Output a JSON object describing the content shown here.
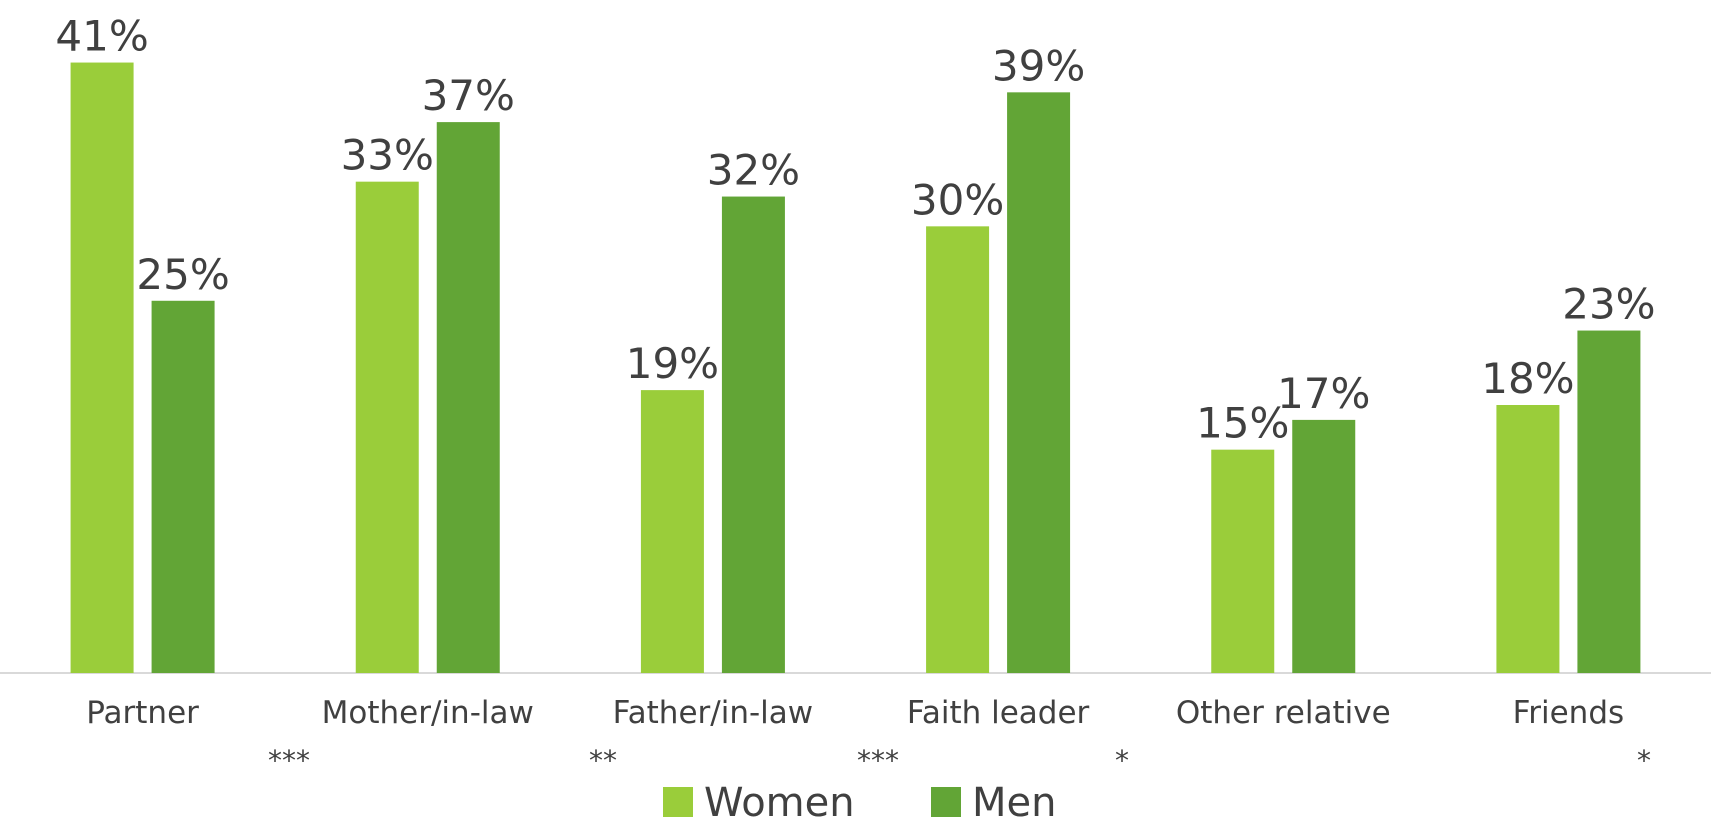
{
  "chart_data": {
    "type": "bar",
    "categories": [
      "Partner",
      "Mother/in-law",
      "Father/in-law",
      "Faith leader",
      "Other relative",
      "Friends"
    ],
    "series": [
      {
        "name": "Women",
        "color": "#9acd3a",
        "values": [
          41,
          33,
          19,
          30,
          15,
          18
        ],
        "value_labels": [
          "41%",
          "33%",
          "19%",
          "30%",
          "15%",
          "18%"
        ]
      },
      {
        "name": "Men",
        "color": "#62a536",
        "values": [
          25,
          37,
          32,
          39,
          17,
          23
        ],
        "value_labels": [
          "25%",
          "37%",
          "32%",
          "39%",
          "17%",
          "23%"
        ]
      }
    ],
    "annotations": [
      "***",
      "**",
      "***",
      "*",
      "*"
    ],
    "ylim": [
      0,
      45
    ],
    "grid": false
  }
}
